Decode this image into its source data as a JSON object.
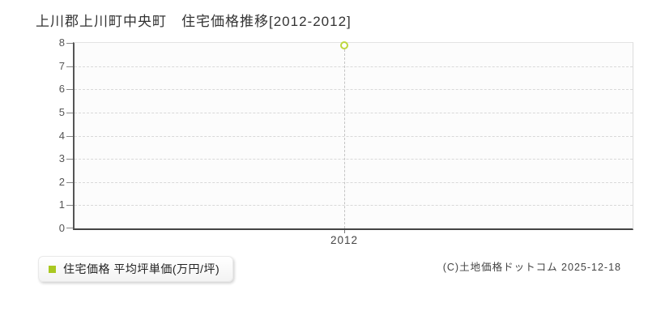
{
  "page": {
    "title": "上川郡上川町中央町　住宅価格推移[2012-2012]"
  },
  "axis": {
    "y_labels": [
      "8",
      "7",
      "6",
      "5",
      "4",
      "3",
      "2",
      "1",
      "0"
    ],
    "x_labels": [
      "2012"
    ]
  },
  "legend": {
    "swatch_icon": "series-swatch-square",
    "label": "住宅価格 平均坪単価(万円/坪)"
  },
  "footer": {
    "copyright": "(C)土地価格ドットコム 2025-12-18"
  },
  "colors": {
    "accent_green": "#a9c821",
    "point_ring": "#bdd73e",
    "grid_dashed": "#d9d9d9",
    "axis_dark": "#555555",
    "plot_background": "#fcfcfc"
  },
  "chart_data": {
    "type": "scatter",
    "title": "上川郡上川町中央町 住宅価格推移[2012-2012]",
    "x": [
      2012
    ],
    "series": [
      {
        "name": "住宅価格 平均坪単価(万円/坪)",
        "values": [
          7.9
        ]
      }
    ],
    "ylim": [
      0,
      8
    ],
    "yticks": [
      0,
      1,
      2,
      3,
      4,
      5,
      6,
      7,
      8
    ],
    "xlabel": "",
    "ylabel": "",
    "grid": "horizontal-dashed",
    "legend_position": "bottom-left",
    "annotations": [
      "vertical dashed drop line from point to x-axis at 2012"
    ]
  }
}
